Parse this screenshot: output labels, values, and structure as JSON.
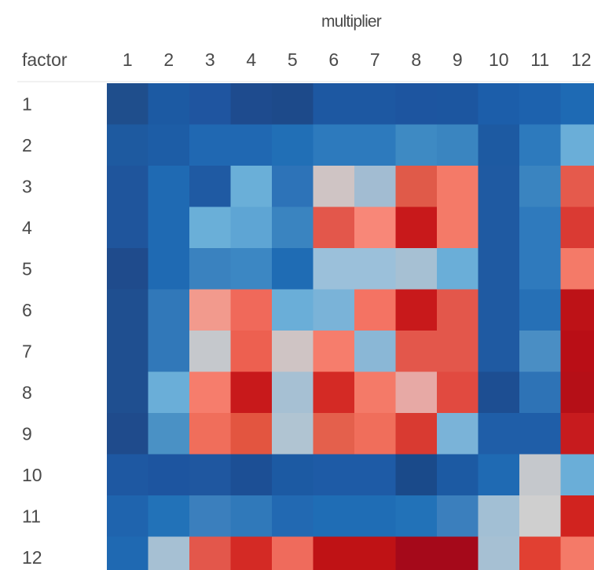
{
  "chart_data": {
    "type": "heatmap",
    "column_title": "multiplier",
    "row_title": "factor",
    "x_labels": [
      "1",
      "2",
      "3",
      "4",
      "5",
      "6",
      "7",
      "8",
      "9",
      "10",
      "11",
      "12"
    ],
    "y_labels": [
      "1",
      "2",
      "3",
      "4",
      "5",
      "6",
      "7",
      "8",
      "9",
      "10",
      "11",
      "12"
    ],
    "cell_colors": [
      [
        "#1f4e8c",
        "#1c5aa3",
        "#1f55a0",
        "#1e4b8e",
        "#1d4a8a",
        "#1d58a2",
        "#1d58a2",
        "#1d55a0",
        "#1c56a0",
        "#1c5eaa",
        "#1d62ae",
        "#1e6ab4"
      ],
      [
        "#1e5aa0",
        "#1d5da6",
        "#2068b2",
        "#2068b2",
        "#216fb6",
        "#2d7abd",
        "#2d7abd",
        "#3e8ac3",
        "#3a85c0",
        "#1d5aa2",
        "#2d7abd",
        "#6aaed8"
      ],
      [
        "#1f559c",
        "#1f6ab3",
        "#1f5aa3",
        "#6aafd8",
        "#2d73b8",
        "#cfc4c4",
        "#a2bcd2",
        "#e05a49",
        "#f47a68",
        "#1f5aa2",
        "#3a84c0",
        "#e55a4c"
      ],
      [
        "#1f559c",
        "#1f6ab3",
        "#6aafd8",
        "#5ea5d4",
        "#3a84c0",
        "#e3574b",
        "#f88778",
        "#c8191b",
        "#f47a68",
        "#1f5aa2",
        "#2f7abd",
        "#da3a33"
      ],
      [
        "#1f4b8c",
        "#1f6ab3",
        "#3a82bf",
        "#3c87c3",
        "#1f6cb4",
        "#9bc0da",
        "#9bc0da",
        "#a6c0d3",
        "#6aaed8",
        "#1f5aa2",
        "#2f7abd",
        "#f47a68"
      ],
      [
        "#1f4f90",
        "#3178b9",
        "#f29a8d",
        "#f0695a",
        "#6aaed8",
        "#7ab3d8",
        "#f47363",
        "#c8191b",
        "#e3574b",
        "#1f5aa2",
        "#2670b6",
        "#bd1217"
      ],
      [
        "#1f4f90",
        "#3178b9",
        "#c5c8cc",
        "#ed6050",
        "#cfc4c4",
        "#f67d6c",
        "#8ab7d6",
        "#e3574b",
        "#e3574b",
        "#1f5aa2",
        "#4a8ec4",
        "#b90e16"
      ],
      [
        "#1f4f90",
        "#6aaed8",
        "#f67d6c",
        "#c8191b",
        "#a6c0d3",
        "#d42a25",
        "#f47a68",
        "#e7a9a5",
        "#e14a40",
        "#1d4e92",
        "#2e73b6",
        "#b50f17"
      ],
      [
        "#1f4b8c",
        "#4a91c5",
        "#f06e5b",
        "#e35540",
        "#b0c4d2",
        "#e4604c",
        "#f06e5b",
        "#d93a31",
        "#7ab3d8",
        "#1f5ea8",
        "#1f5ea8",
        "#c71b1e"
      ],
      [
        "#1e58a2",
        "#1d55a0",
        "#1f57a0",
        "#1c4f95",
        "#1c5aa3",
        "#1e5ba6",
        "#1e5ba6",
        "#1a4a8a",
        "#1c5aa3",
        "#1f6ab3",
        "#c5c8cc",
        "#6aaed8"
      ],
      [
        "#1f64ae",
        "#2272b8",
        "#3b7fbd",
        "#3079ba",
        "#2269b2",
        "#1f6db5",
        "#1f6db5",
        "#2272b8",
        "#3b7fbd",
        "#a2bfd4",
        "#cfcfcf",
        "#d1231f"
      ],
      [
        "#1f69b2",
        "#a6c0d3",
        "#e3574b",
        "#d42a25",
        "#ef6b5c",
        "#bf1215",
        "#bf1215",
        "#a5091a",
        "#a5091a",
        "#a6c0d3",
        "#e14032",
        "#f47a68"
      ]
    ]
  }
}
